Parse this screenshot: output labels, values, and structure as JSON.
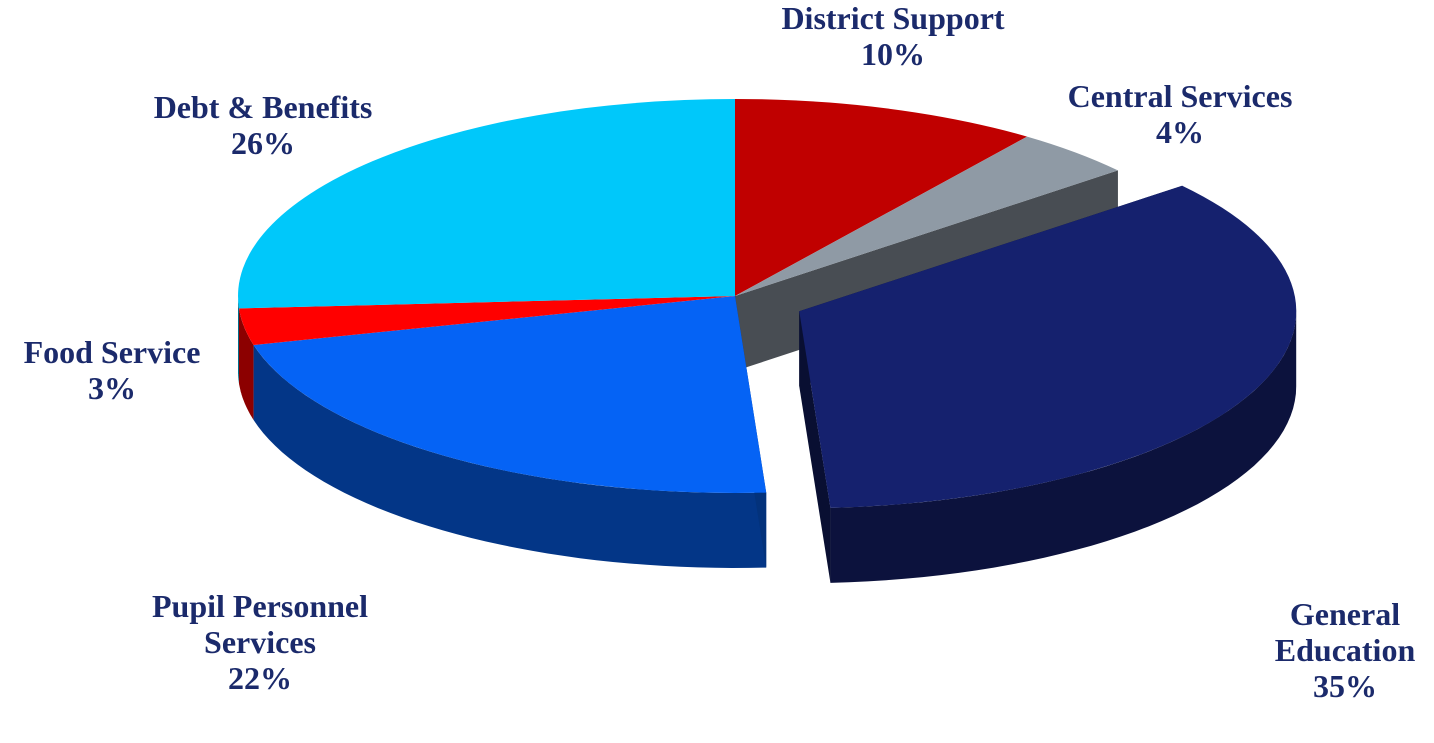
{
  "chart_data": {
    "type": "pie",
    "title": "",
    "exploded": "General Education",
    "slices": [
      {
        "name": "District Support",
        "value": 10,
        "label_lines": [
          "District Support",
          "10%"
        ],
        "color": "#c00000"
      },
      {
        "name": "Central Services",
        "value": 4,
        "label_lines": [
          "Central Services",
          "4%"
        ],
        "color": "#8f9aa5"
      },
      {
        "name": "General Education",
        "value": 35,
        "label_lines": [
          "General",
          "Education",
          "35%"
        ],
        "color": "#15216e"
      },
      {
        "name": "Pupil Personnel Services",
        "value": 22,
        "label_lines": [
          "Pupil Personnel",
          "Services",
          "22%"
        ],
        "color": "#0563f5"
      },
      {
        "name": "Food Service",
        "value": 3,
        "label_lines": [
          "Food Service",
          "3%"
        ],
        "color": "#ff0000"
      },
      {
        "name": "Debt & Benefits",
        "value": 26,
        "label_lines": [
          "Debt & Benefits",
          "26%"
        ],
        "color": "#00c8fa"
      }
    ]
  }
}
